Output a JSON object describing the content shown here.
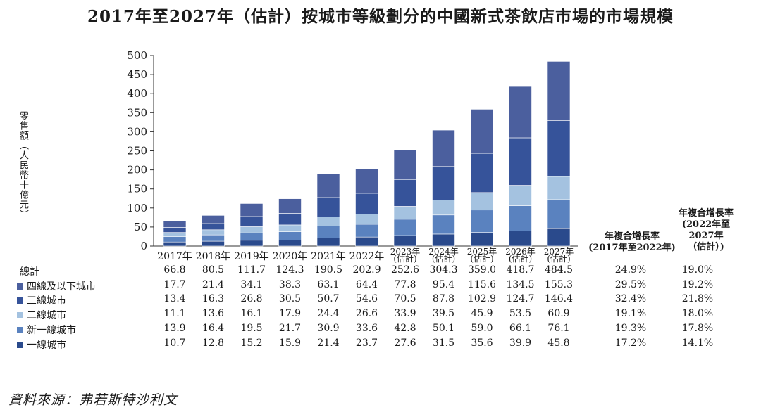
{
  "header": {
    "title": "2017年至2027年（估計）按城市等級劃分的中國新式茶飲店市場的市場規模"
  },
  "chart_data": {
    "type": "bar",
    "stacked": true,
    "title": "2017年至2027年（估計）按城市等級劃分的中國新式茶飲店市場的市場規模",
    "ylabel": "零售額（人民幣十億元）",
    "ylim": [
      0,
      500
    ],
    "yticks": [
      0,
      50,
      100,
      150,
      200,
      250,
      300,
      350,
      400,
      450,
      500
    ],
    "categories": [
      "2017年",
      "2018年",
      "2019年",
      "2020年",
      "2021年",
      "2022年",
      "2023年\n(估計)",
      "2024年\n(估計)",
      "2025年\n(估計)",
      "2026年\n(估計)",
      "2027年\n(估計)"
    ],
    "totals": [
      "66.8",
      "80.5",
      "111.7",
      "124.3",
      "190.5",
      "202.9",
      "252.6",
      "304.3",
      "359.0",
      "418.7",
      "484.5"
    ],
    "total_label": "總計",
    "series": [
      {
        "name": "一線城市",
        "color": "#2a4a8c",
        "values": [
          "10.7",
          "12.8",
          "15.2",
          "15.9",
          "21.4",
          "23.7",
          "27.6",
          "31.5",
          "35.6",
          "39.9",
          "45.8"
        ],
        "cagr1": "17.2%",
        "cagr2": "14.1%"
      },
      {
        "name": "新一線城市",
        "color": "#5a82bf",
        "values": [
          "13.9",
          "16.4",
          "19.5",
          "21.7",
          "30.9",
          "33.6",
          "42.8",
          "50.1",
          "59.0",
          "66.1",
          "76.1"
        ],
        "cagr1": "19.3%",
        "cagr2": "17.8%"
      },
      {
        "name": "二線城市",
        "color": "#a4c2e0",
        "values": [
          "11.1",
          "13.6",
          "16.1",
          "17.9",
          "24.4",
          "26.6",
          "33.9",
          "39.5",
          "45.9",
          "53.5",
          "60.9"
        ],
        "cagr1": "19.1%",
        "cagr2": "18.0%"
      },
      {
        "name": "三線城市",
        "color": "#36539a",
        "values": [
          "13.4",
          "16.3",
          "26.8",
          "30.5",
          "50.7",
          "54.6",
          "70.5",
          "87.8",
          "102.9",
          "124.7",
          "146.4"
        ],
        "cagr1": "32.4%",
        "cagr2": "21.8%"
      },
      {
        "name": "四線及以下城市",
        "color": "#4b5f9e",
        "values": [
          "17.7",
          "21.4",
          "34.1",
          "38.3",
          "63.1",
          "64.4",
          "77.8",
          "95.4",
          "115.6",
          "134.5",
          "155.3"
        ],
        "cagr1": "29.5%",
        "cagr2": "19.2%"
      }
    ],
    "total_cagr1": "24.9%",
    "total_cagr2": "19.0%",
    "cagr_headers": [
      "年複合增長率\n(2017年至2022年)",
      "年複合增長率\n(2022年至\n2027年\n（估計）)"
    ]
  },
  "source": "資料來源：弗若斯特沙利文"
}
